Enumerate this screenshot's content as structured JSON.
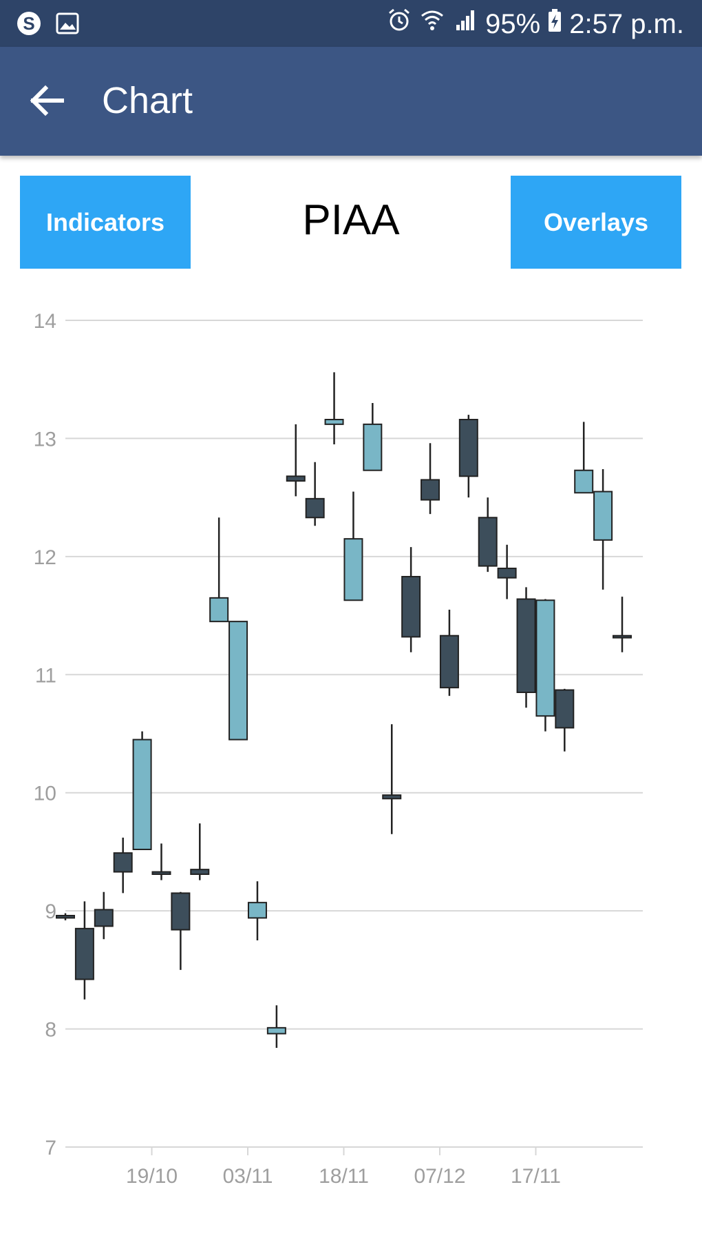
{
  "status_bar": {
    "battery": "95%",
    "time": "2:57 p.m.",
    "icons": [
      "skype-icon",
      "image-icon",
      "alarm-icon",
      "wifi-icon",
      "signal-icon",
      "battery-charging-icon"
    ]
  },
  "app_bar": {
    "title": "Chart",
    "back_icon": "arrow-left-icon"
  },
  "controls": {
    "indicators_label": "Indicators",
    "symbol": "PIAA",
    "overlays_label": "Overlays"
  },
  "colors": {
    "up": "#79b6c6",
    "down": "#3d4e5b",
    "accent": "#2ea6f5",
    "app_bar": "#3c5684",
    "status_bar": "#2e4468"
  },
  "chart_data": {
    "type": "candlestick",
    "ylim": [
      7,
      14
    ],
    "yticks": [
      "14",
      "13",
      "12",
      "11",
      "10",
      "9",
      "8",
      "7"
    ],
    "xticks": [
      "19/10",
      "03/11",
      "18/11",
      "07/12",
      "17/11"
    ],
    "candles": [
      {
        "open": 8.96,
        "high": 8.98,
        "low": 8.92,
        "close": 8.94
      },
      {
        "open": 8.85,
        "high": 9.08,
        "low": 8.25,
        "close": 8.42
      },
      {
        "open": 9.01,
        "high": 9.16,
        "low": 8.76,
        "close": 8.87
      },
      {
        "open": 9.49,
        "high": 9.62,
        "low": 9.15,
        "close": 9.33
      },
      {
        "open": 9.52,
        "high": 10.52,
        "low": 9.52,
        "close": 10.45
      },
      {
        "open": 9.33,
        "high": 9.57,
        "low": 9.26,
        "close": 9.31
      },
      {
        "open": 9.15,
        "high": 9.16,
        "low": 8.5,
        "close": 8.84
      },
      {
        "open": 9.35,
        "high": 9.74,
        "low": 9.26,
        "close": 9.31
      },
      {
        "open": 11.45,
        "high": 12.33,
        "low": 11.45,
        "close": 11.65
      },
      {
        "open": 10.45,
        "high": 11.45,
        "low": 10.45,
        "close": 11.45
      },
      {
        "open": 8.94,
        "high": 9.25,
        "low": 8.75,
        "close": 9.07
      },
      {
        "open": 7.96,
        "high": 8.2,
        "low": 7.84,
        "close": 8.01
      },
      {
        "open": 12.68,
        "high": 13.12,
        "low": 12.51,
        "close": 12.64
      },
      {
        "open": 12.49,
        "high": 12.8,
        "low": 12.26,
        "close": 12.33
      },
      {
        "open": 13.12,
        "high": 13.56,
        "low": 12.95,
        "close": 13.16
      },
      {
        "open": 11.63,
        "high": 12.55,
        "low": 11.63,
        "close": 12.15
      },
      {
        "open": 12.73,
        "high": 13.3,
        "low": 12.73,
        "close": 13.12
      },
      {
        "open": 9.98,
        "high": 10.58,
        "low": 9.65,
        "close": 9.95
      },
      {
        "open": 11.83,
        "high": 12.08,
        "low": 11.19,
        "close": 11.32
      },
      {
        "open": 12.65,
        "high": 12.96,
        "low": 12.36,
        "close": 12.48
      },
      {
        "open": 11.33,
        "high": 11.55,
        "low": 10.82,
        "close": 10.89
      },
      {
        "open": 13.16,
        "high": 13.2,
        "low": 12.5,
        "close": 12.68
      },
      {
        "open": 12.33,
        "high": 12.5,
        "low": 11.87,
        "close": 11.92
      },
      {
        "open": 11.9,
        "high": 12.1,
        "low": 11.64,
        "close": 11.82
      },
      {
        "open": 11.64,
        "high": 11.74,
        "low": 10.72,
        "close": 10.85
      },
      {
        "open": 10.65,
        "high": 11.64,
        "low": 10.52,
        "close": 11.63
      },
      {
        "open": 10.87,
        "high": 10.88,
        "low": 10.35,
        "close": 10.55
      },
      {
        "open": 12.54,
        "high": 13.14,
        "low": 12.54,
        "close": 12.73
      },
      {
        "open": 12.14,
        "high": 12.74,
        "low": 11.72,
        "close": 12.55
      },
      {
        "open": 11.33,
        "high": 11.66,
        "low": 11.19,
        "close": 11.32
      }
    ]
  }
}
